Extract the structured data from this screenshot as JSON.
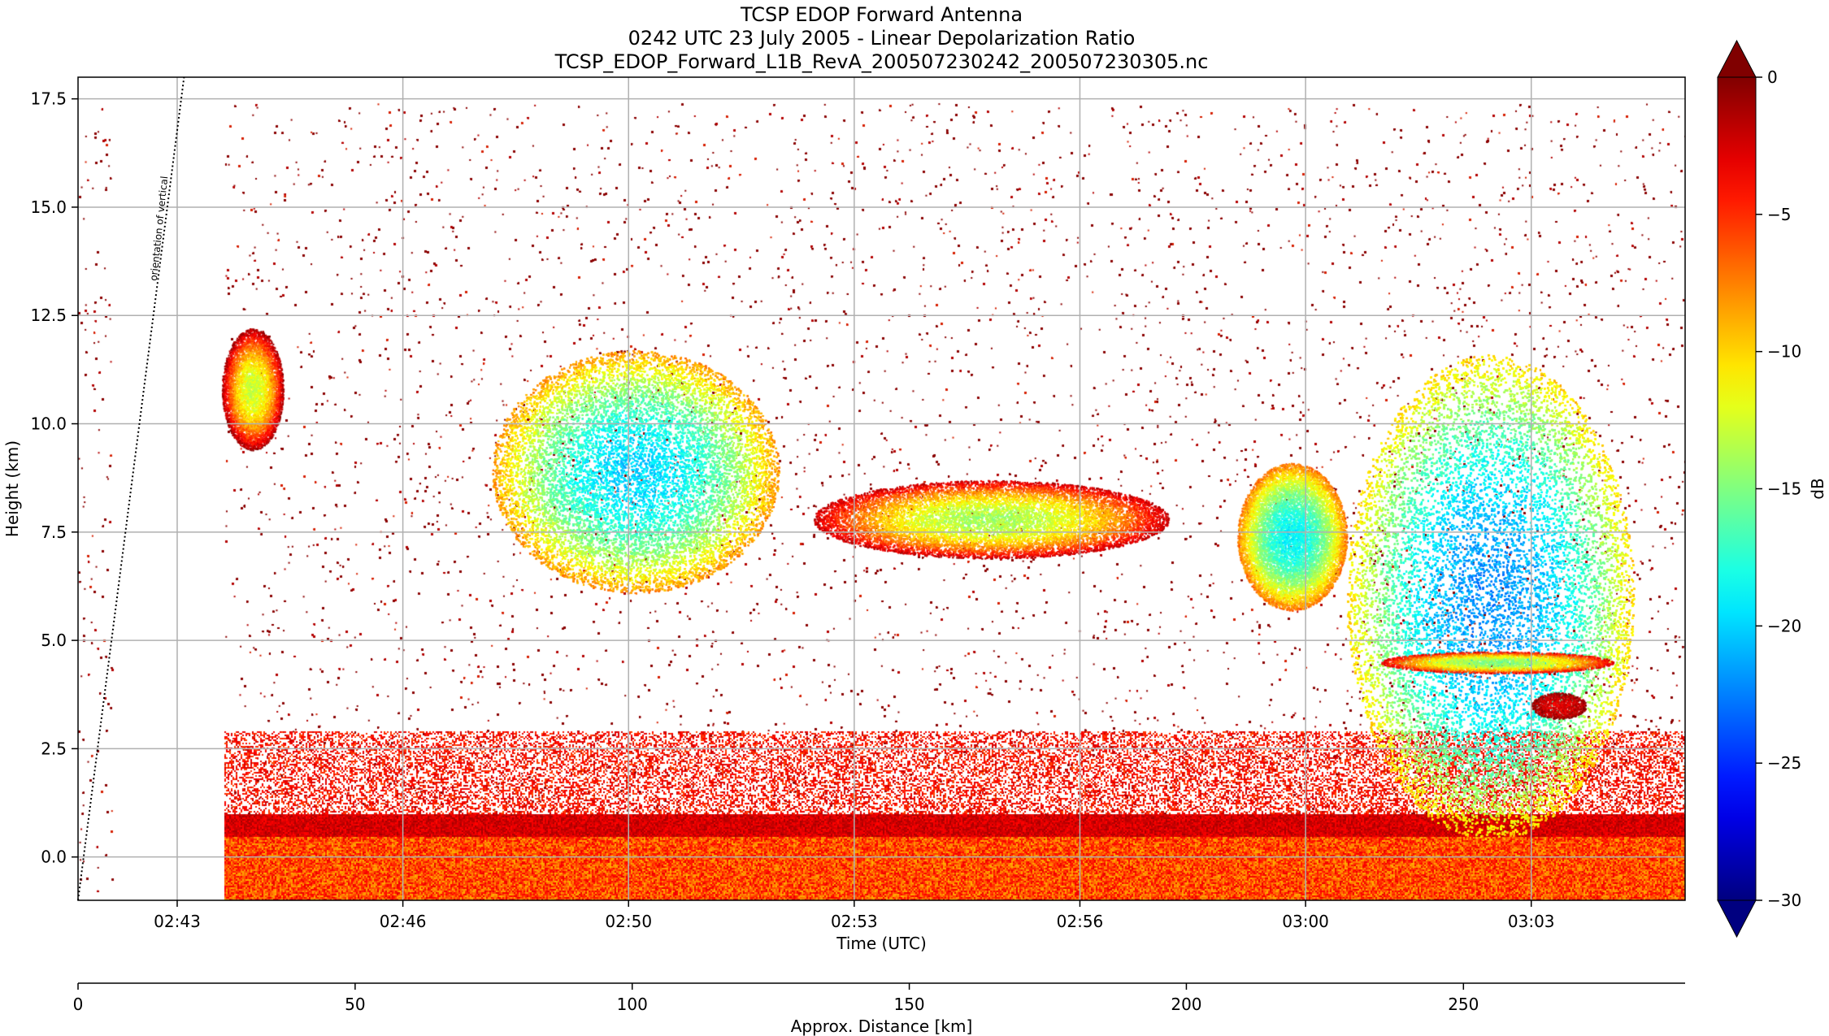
{
  "chart_data": {
    "type": "heatmap",
    "title_lines": [
      "TCSP EDOP Forward Antenna",
      "0242 UTC 23 July 2005 - Linear Depolarization Ratio",
      "TCSP_EDOP_Forward_L1B_RevA_200507230242_200507230305.nc"
    ],
    "xlabel": "Time (UTC)",
    "ylabel": "Height (km)",
    "x2label": "Approx. Distance [km]",
    "colorbar_label": "dB",
    "annotation": "orientation of vertical",
    "ylim": [
      -1.0,
      18.0
    ],
    "xlim_minutes": [
      -0.85,
      22.65
    ],
    "x2lim": [
      0,
      290
    ],
    "clim": [
      -30,
      0
    ],
    "colorbar_extend": "both",
    "colormap": "jet",
    "grid": true,
    "x_ticks": [
      {
        "minutes": 0.6,
        "label": "02:43"
      },
      {
        "minutes": 3.9,
        "label": "02:46"
      },
      {
        "minutes": 7.2,
        "label": "02:50"
      },
      {
        "minutes": 10.5,
        "label": "02:53"
      },
      {
        "minutes": 13.8,
        "label": "02:56"
      },
      {
        "minutes": 17.1,
        "label": "03:00"
      },
      {
        "minutes": 20.4,
        "label": "03:03"
      }
    ],
    "y_ticks": [
      0.0,
      2.5,
      5.0,
      7.5,
      10.0,
      12.5,
      15.0,
      17.5
    ],
    "y_tick_labels": [
      "0.0",
      "2.5",
      "5.0",
      "7.5",
      "10.0",
      "12.5",
      "15.0",
      "17.5"
    ],
    "x2_ticks": [
      0,
      50,
      100,
      150,
      200,
      250
    ],
    "x2_tick_labels": [
      "0",
      "50",
      "100",
      "150",
      "200",
      "250"
    ],
    "colorbar_ticks": [
      0,
      -5,
      -10,
      -15,
      -20,
      -25,
      -30
    ],
    "colorbar_tick_labels": [
      "0",
      "−5",
      "−10",
      "−15",
      "−20",
      "−25",
      "−30"
    ],
    "data_gaps_minutes": [
      [
        -0.35,
        1.3
      ]
    ],
    "features": [
      {
        "name": "surface and low-level backscatter",
        "x_range": [
          1.3,
          22.65
        ],
        "y_range": [
          -1.0,
          1.0
        ],
        "ldr_db": -4
      },
      {
        "name": "cloud near 02:44",
        "x_center": 1.7,
        "y_center": 10.8,
        "x_halfwidth": 0.45,
        "y_halfwidth": 1.4,
        "ldr_db": -13
      },
      {
        "name": "cloud 02:48-02:52",
        "x_center": 7.3,
        "y_center": 8.9,
        "x_halfwidth": 2.1,
        "y_halfwidth": 2.8,
        "ldr_db": -20
      },
      {
        "name": "cloud 02:53-02:58",
        "x_center": 12.5,
        "y_center": 7.8,
        "x_halfwidth": 2.6,
        "y_halfwidth": 0.9,
        "ldr_db": -14
      },
      {
        "name": "cloud near 02:59",
        "x_center": 16.9,
        "y_center": 7.4,
        "x_halfwidth": 0.8,
        "y_halfwidth": 1.7,
        "ldr_db": -19
      },
      {
        "name": "deep cloud 03:01-03:04",
        "x_center": 19.8,
        "y_center": 6.0,
        "x_halfwidth": 2.1,
        "y_halfwidth": 5.6,
        "ldr_db": -22
      },
      {
        "name": "melting layer band",
        "x_center": 19.9,
        "y_center": 4.5,
        "x_halfwidth": 1.7,
        "y_halfwidth": 0.25,
        "ldr_db": -15
      },
      {
        "name": "high depolarization patch",
        "x_center": 20.8,
        "y_center": 3.5,
        "x_halfwidth": 0.4,
        "y_halfwidth": 0.3,
        "ldr_db": -3
      }
    ]
  }
}
